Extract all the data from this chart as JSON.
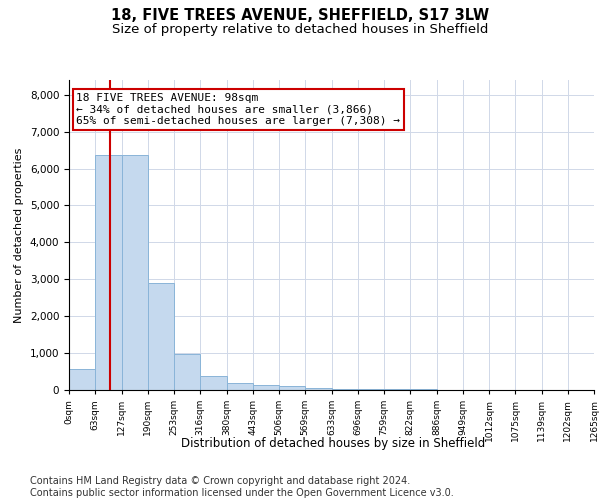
{
  "title1": "18, FIVE TREES AVENUE, SHEFFIELD, S17 3LW",
  "title2": "Size of property relative to detached houses in Sheffield",
  "xlabel": "Distribution of detached houses by size in Sheffield",
  "ylabel": "Number of detached properties",
  "annotation_line1": "18 FIVE TREES AVENUE: 98sqm",
  "annotation_line2": "← 34% of detached houses are smaller (3,866)",
  "annotation_line3": "65% of semi-detached houses are larger (7,308) →",
  "footer1": "Contains HM Land Registry data © Crown copyright and database right 2024.",
  "footer2": "Contains public sector information licensed under the Open Government Licence v3.0.",
  "property_size": 98,
  "bin_edges": [
    0,
    63,
    127,
    190,
    253,
    316,
    380,
    443,
    506,
    569,
    633,
    696,
    759,
    822,
    886,
    949,
    1012,
    1075,
    1139,
    1202,
    1265
  ],
  "bar_heights": [
    580,
    6380,
    6380,
    2900,
    980,
    380,
    200,
    130,
    100,
    60,
    40,
    30,
    20,
    15,
    10,
    8,
    6,
    5,
    4,
    3
  ],
  "bar_color": "#c5d9ee",
  "bar_edge_color": "#8ab4d8",
  "red_line_color": "#cc0000",
  "annotation_box_color": "#cc0000",
  "ylim": [
    0,
    8400
  ],
  "yticks": [
    0,
    1000,
    2000,
    3000,
    4000,
    5000,
    6000,
    7000,
    8000
  ],
  "tick_labels": [
    "0sqm",
    "63sqm",
    "127sqm",
    "190sqm",
    "253sqm",
    "316sqm",
    "380sqm",
    "443sqm",
    "506sqm",
    "569sqm",
    "633sqm",
    "696sqm",
    "759sqm",
    "822sqm",
    "886sqm",
    "949sqm",
    "1012sqm",
    "1075sqm",
    "1139sqm",
    "1202sqm",
    "1265sqm"
  ],
  "title1_fontsize": 10.5,
  "title2_fontsize": 9.5,
  "footer_fontsize": 7,
  "annotation_fontsize": 8,
  "ylabel_fontsize": 8,
  "xlabel_fontsize": 8.5
}
